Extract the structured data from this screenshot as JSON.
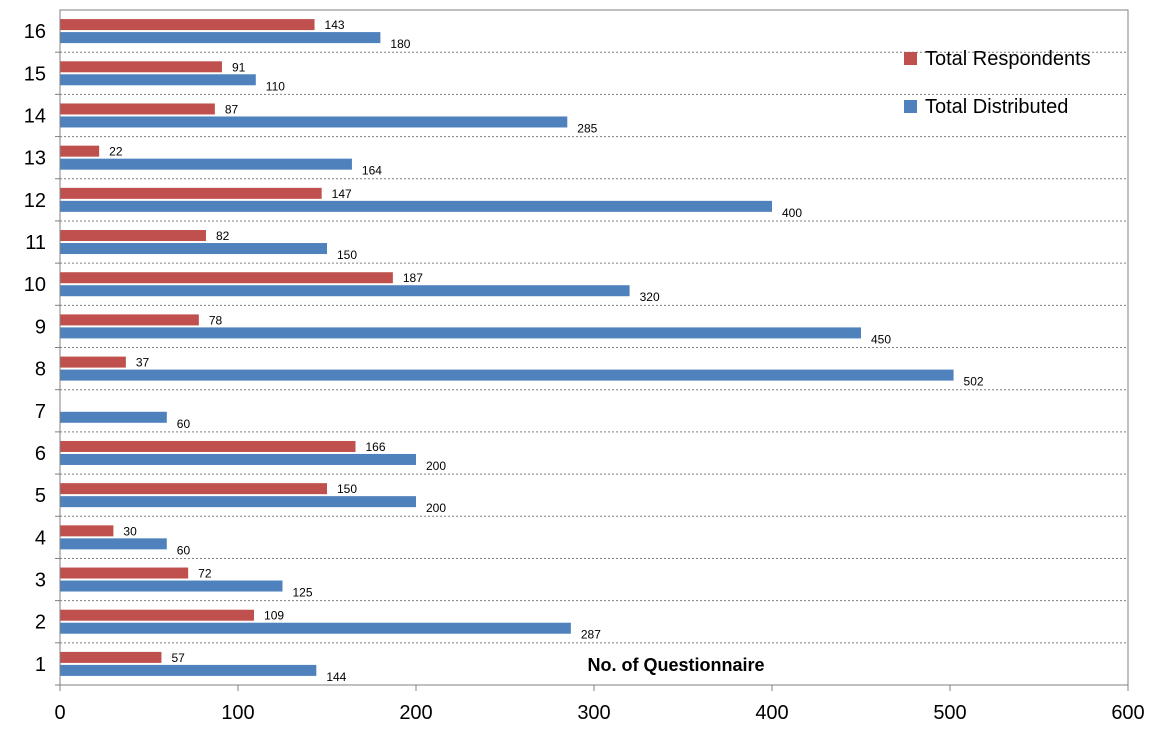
{
  "chart_data": {
    "type": "bar",
    "orientation": "horizontal",
    "categories": [
      "1",
      "2",
      "3",
      "4",
      "5",
      "6",
      "7",
      "8",
      "9",
      "10",
      "11",
      "12",
      "13",
      "14",
      "15",
      "16"
    ],
    "series": [
      {
        "name": "Total Respondents",
        "color": "#c0504d",
        "values": [
          57,
          109,
          72,
          30,
          150,
          166,
          0,
          37,
          78,
          187,
          82,
          147,
          22,
          87,
          91,
          143
        ]
      },
      {
        "name": "Total Distributed",
        "color": "#4f81bd",
        "values": [
          144,
          287,
          125,
          60,
          200,
          200,
          60,
          502,
          450,
          320,
          150,
          400,
          164,
          285,
          110,
          180
        ]
      }
    ],
    "title": "",
    "xlabel": "No. of Questionnaire",
    "ylabel": "",
    "xlim": [
      0,
      600
    ],
    "xticks": [
      0,
      100,
      200,
      300,
      400,
      500,
      600
    ],
    "grid": "horizontal dotted",
    "legend": "top-right",
    "data_labels": true
  }
}
